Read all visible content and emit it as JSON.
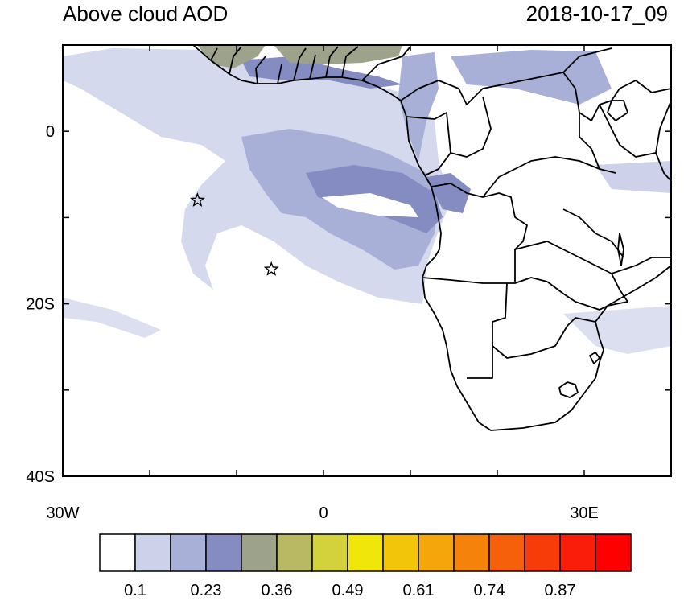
{
  "title_left": "Above cloud AOD",
  "title_right": "2018-10-17_09",
  "map": {
    "lon_range": [
      -30,
      40
    ],
    "lat_range": [
      -40,
      10
    ],
    "lon_tick_labels": [
      {
        "lon": -30,
        "label": "30W"
      },
      {
        "lon": 0,
        "label": "0"
      },
      {
        "lon": 30,
        "label": "30E"
      }
    ],
    "lat_tick_labels": [
      {
        "lat": 0,
        "label": "0"
      },
      {
        "lat": -20,
        "label": "20S"
      },
      {
        "lat": -40,
        "label": "40S"
      }
    ],
    "markers": [
      {
        "name": "star-marker",
        "lon": -14.5,
        "lat": -8.0
      },
      {
        "name": "star-marker",
        "lon": -6.0,
        "lat": -16.0
      }
    ]
  },
  "colorbar": {
    "colors": [
      "#ffffff",
      "#cdd2ea",
      "#a9b0d8",
      "#848cc2",
      "#9da28a",
      "#b9b964",
      "#d4d23c",
      "#f0e60a",
      "#f2c40a",
      "#f4a60a",
      "#f5820a",
      "#f6600a",
      "#f73c0a",
      "#fa1e0a",
      "#ff0000"
    ],
    "labels": [
      {
        "after_box": 1,
        "text": "0.1"
      },
      {
        "after_box": 3,
        "text": "0.23"
      },
      {
        "after_box": 5,
        "text": "0.36"
      },
      {
        "after_box": 7,
        "text": "0.49"
      },
      {
        "after_box": 9,
        "text": "0.61"
      },
      {
        "after_box": 11,
        "text": "0.74"
      },
      {
        "after_box": 13,
        "text": "0.87"
      }
    ]
  }
}
